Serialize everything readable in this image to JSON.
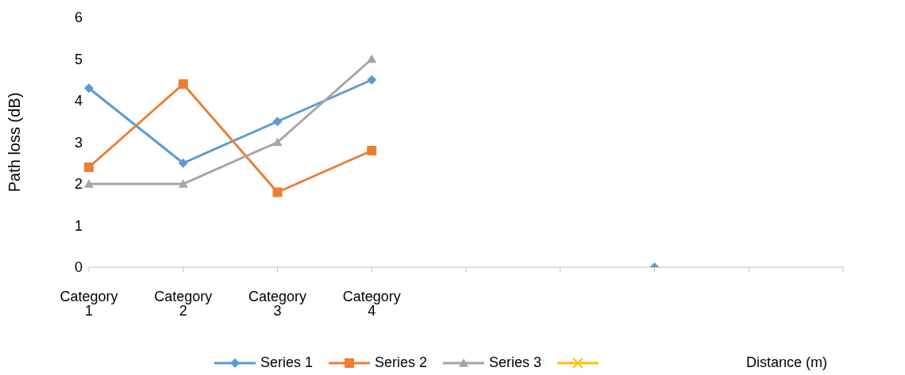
{
  "chart_data": {
    "type": "line",
    "ylabel": "Path loss (dB)",
    "xlabel": "Distance (m)",
    "categories": [
      "Category 1",
      "Category 2",
      "Category 3",
      "Category 4",
      null,
      null,
      null,
      null,
      null
    ],
    "series": [
      {
        "name": "Series 1",
        "color": "#5b9bd5",
        "marker": "diamond",
        "values": [
          4.3,
          2.5,
          3.5,
          4.5,
          null,
          null,
          0,
          null,
          null
        ]
      },
      {
        "name": "Series 2",
        "color": "#ed7d31",
        "marker": "square",
        "values": [
          2.4,
          4.4,
          1.8,
          2.8,
          null,
          null,
          null,
          null,
          null
        ]
      },
      {
        "name": "Series 3",
        "color": "#a5a5a5",
        "marker": "triangle",
        "values": [
          2,
          2,
          3,
          5,
          null,
          null,
          null,
          null,
          null
        ]
      },
      {
        "color": "#ffc000",
        "marker": "cross",
        "values": [
          null,
          null,
          null,
          null,
          null,
          null,
          null,
          null,
          null
        ]
      }
    ],
    "ylim": [
      0,
      6
    ],
    "yticks": [
      0,
      1,
      2,
      3,
      4,
      5,
      6
    ],
    "grid": false,
    "legend": "bottom"
  }
}
